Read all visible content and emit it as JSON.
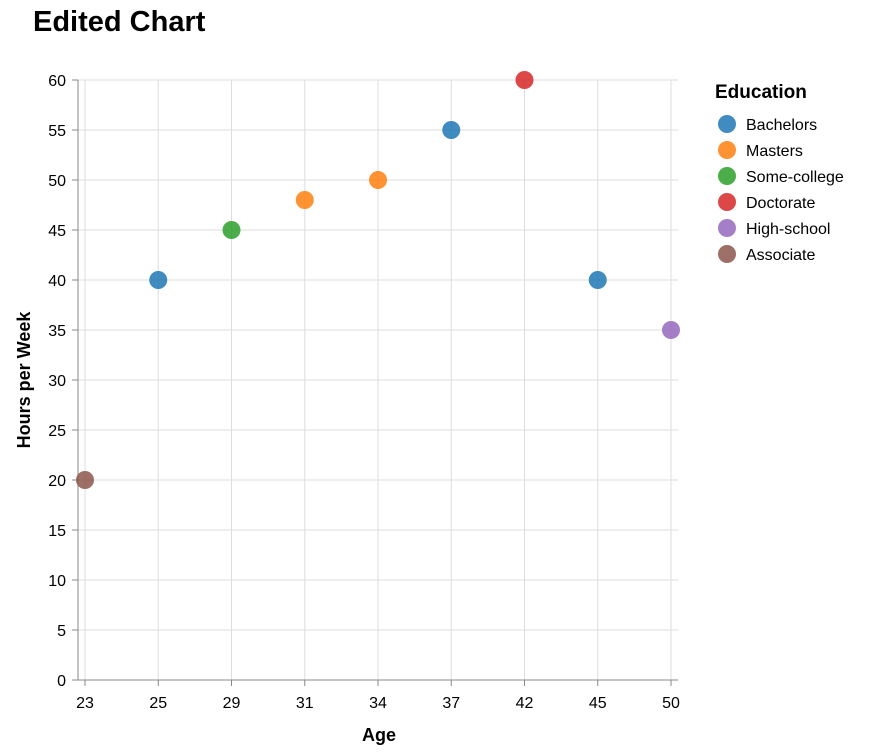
{
  "chart_data": {
    "type": "scatter",
    "title": "Edited Chart",
    "xlabel": "Age",
    "ylabel": "Hours per Week",
    "x_categories": [
      "23",
      "25",
      "29",
      "31",
      "34",
      "37",
      "42",
      "45",
      "50"
    ],
    "ylim": [
      0,
      60
    ],
    "y_ticks": [
      0,
      5,
      10,
      15,
      20,
      25,
      30,
      35,
      40,
      45,
      50,
      55,
      60
    ],
    "grid": true,
    "legend": {
      "title": "Education",
      "placement": "right",
      "entries": [
        {
          "name": "Bachelors",
          "color": "#1f77b4"
        },
        {
          "name": "Masters",
          "color": "#ff7f0e"
        },
        {
          "name": "Some-college",
          "color": "#2ca02c"
        },
        {
          "name": "Doctorate",
          "color": "#d62728"
        },
        {
          "name": "High-school",
          "color": "#9467bd"
        },
        {
          "name": "Associate",
          "color": "#8c564b"
        }
      ]
    },
    "points": [
      {
        "x": "23",
        "y": 20,
        "education": "Associate"
      },
      {
        "x": "25",
        "y": 40,
        "education": "Bachelors"
      },
      {
        "x": "29",
        "y": 45,
        "education": "Some-college"
      },
      {
        "x": "31",
        "y": 48,
        "education": "Masters"
      },
      {
        "x": "34",
        "y": 50,
        "education": "Masters"
      },
      {
        "x": "37",
        "y": 55,
        "education": "Bachelors"
      },
      {
        "x": "42",
        "y": 60,
        "education": "Doctorate"
      },
      {
        "x": "45",
        "y": 40,
        "education": "Bachelors"
      },
      {
        "x": "50",
        "y": 35,
        "education": "High-school"
      }
    ]
  }
}
